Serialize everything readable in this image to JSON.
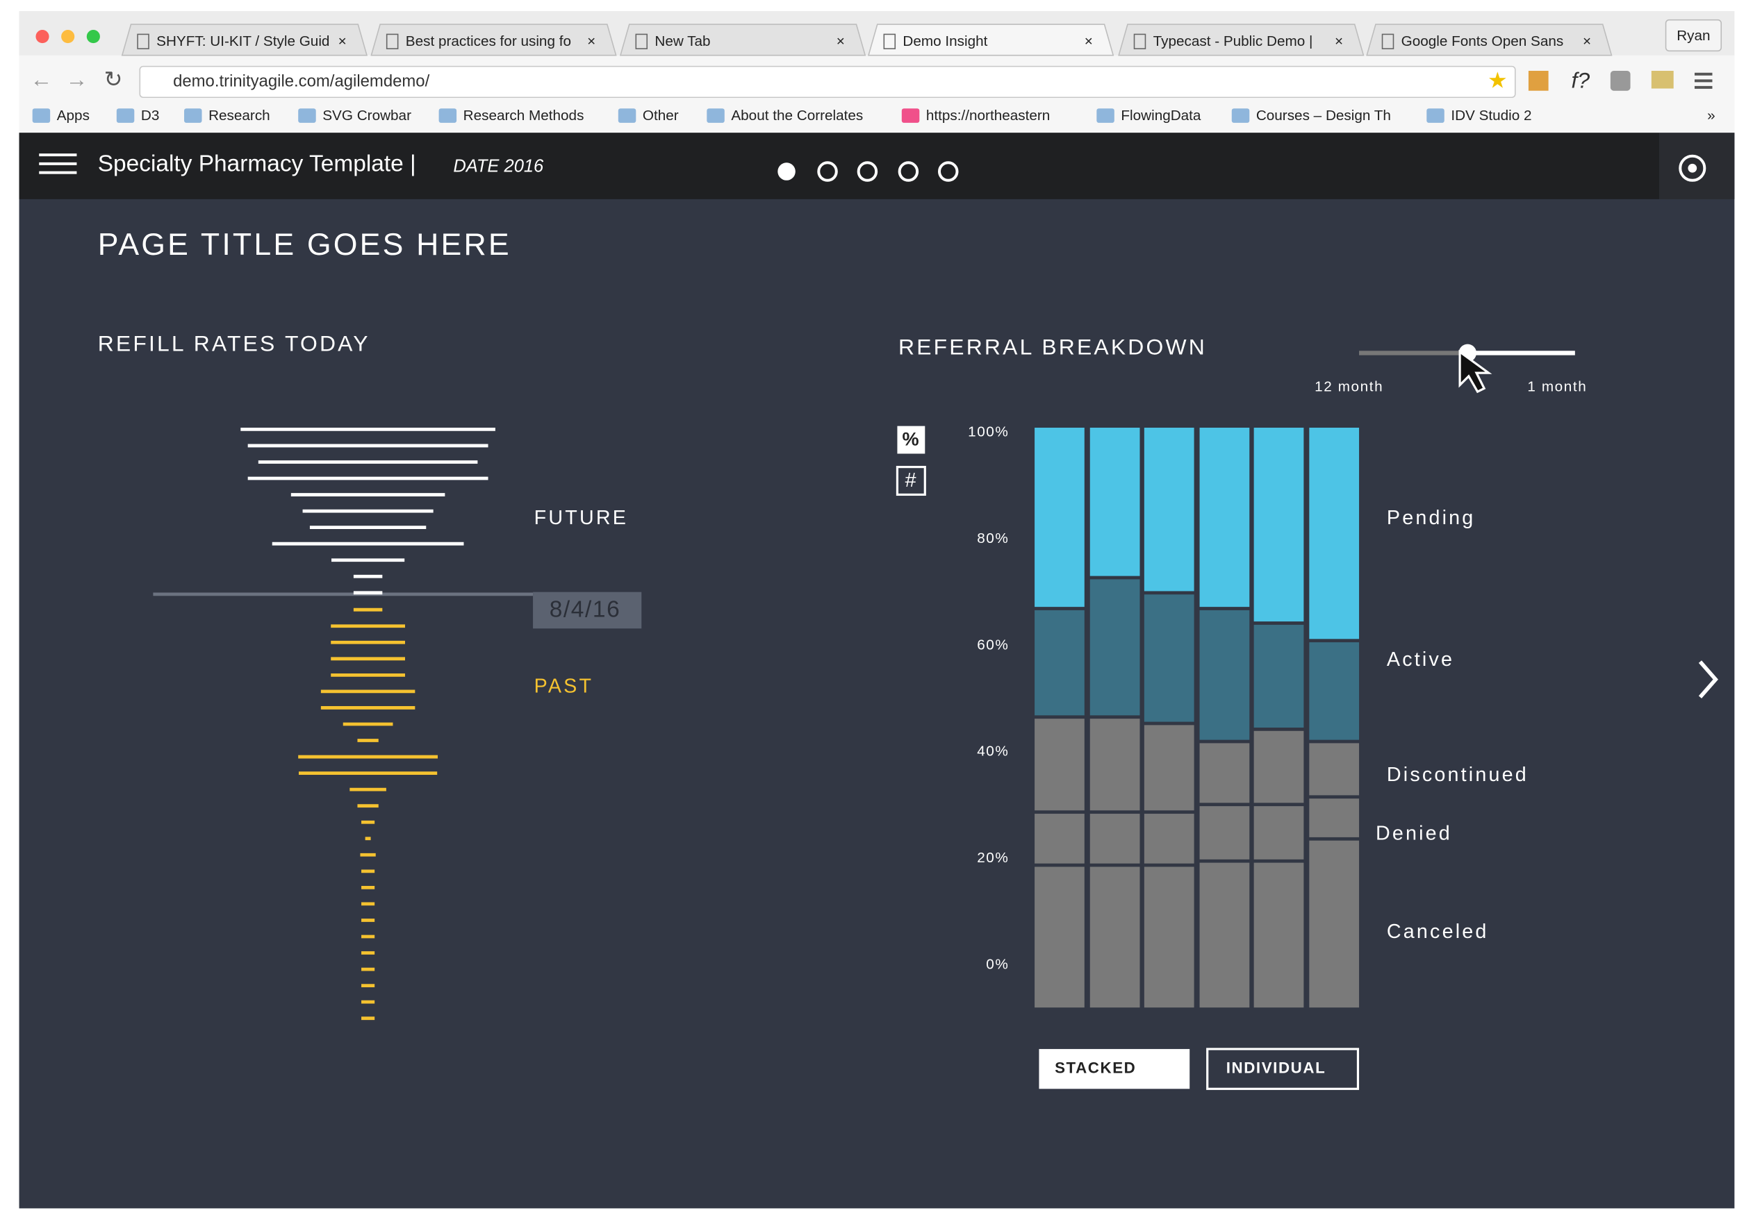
{
  "browser": {
    "tabs": [
      "SHYFT: UI-KIT / Style Guid",
      "Best practices for using fo",
      "New Tab",
      "Demo Insight",
      "Typecast - Public Demo |",
      "Google Fonts Open Sans"
    ],
    "profile": "Ryan",
    "url": "demo.trinityagile.com/agilemdemo/",
    "bookmarks": [
      "Apps",
      "D3",
      "Research",
      "SVG Crowbar",
      "Research Methods",
      "Other",
      "About the Correlates",
      "https://northeastern",
      "FlowingData",
      "Courses – Design Th",
      "IDV Studio 2"
    ],
    "more": "»"
  },
  "header": {
    "title": "Specialty Pharmacy Template |",
    "date": "DATE 2016"
  },
  "page_title": "PAGE TITLE GOES HERE",
  "refill_chart": {
    "title": "REFILL RATES TODAY",
    "future_label": "FUTURE",
    "past_label": "PAST",
    "date_marker": "8/4/16",
    "future_widths": [
      230,
      217,
      198,
      217,
      139,
      118,
      105,
      173,
      66,
      26,
      26
    ],
    "past_widths": [
      26,
      67,
      67,
      67,
      67,
      85,
      85,
      45,
      19,
      126,
      125,
      33,
      19,
      12,
      5,
      14,
      12,
      12,
      12,
      12,
      12,
      12,
      12,
      12,
      12,
      12
    ]
  },
  "referral_chart": {
    "type": "bar",
    "stacked": true,
    "title": "REFERRAL BREAKDOWN",
    "slider_labels": [
      "12 month",
      "1 month"
    ],
    "toggles": [
      "%",
      "#"
    ],
    "ylim": [
      0,
      100
    ],
    "yticks": [
      {
        "value": 0,
        "label": "0%"
      },
      {
        "value": 20,
        "label": "20%"
      },
      {
        "value": 40,
        "label": "40%"
      },
      {
        "value": 60,
        "label": "60%"
      },
      {
        "value": 80,
        "label": "80%"
      },
      {
        "value": 100,
        "label": "100%"
      }
    ],
    "categories": [
      null,
      null,
      null,
      null,
      null,
      null
    ],
    "series": [
      {
        "name": "Canceled",
        "color": "#7a7a7a",
        "values": [
          24.7,
          24.7,
          24.7,
          25.4,
          25.4,
          29.2
        ]
      },
      {
        "name": "Denied",
        "color": "#7a7a7a",
        "values": [
          9.1,
          9.1,
          9.1,
          9.7,
          9.7,
          7.2
        ]
      },
      {
        "name": "Discontinued",
        "color": "#7a7a7a",
        "values": [
          16.3,
          16.3,
          15.2,
          10.8,
          12.9,
          9.5
        ]
      },
      {
        "name": "Active",
        "color": "#3b7085",
        "values": [
          18.6,
          23.9,
          22.4,
          22.8,
          18.2,
          17.3
        ]
      },
      {
        "name": "Pending",
        "color": "#4dc4e6",
        "values": [
          31.3,
          26.0,
          28.6,
          31.3,
          33.8,
          36.8
        ]
      }
    ],
    "buttons": [
      "STACKED",
      "INDIVIDUAL"
    ]
  }
}
